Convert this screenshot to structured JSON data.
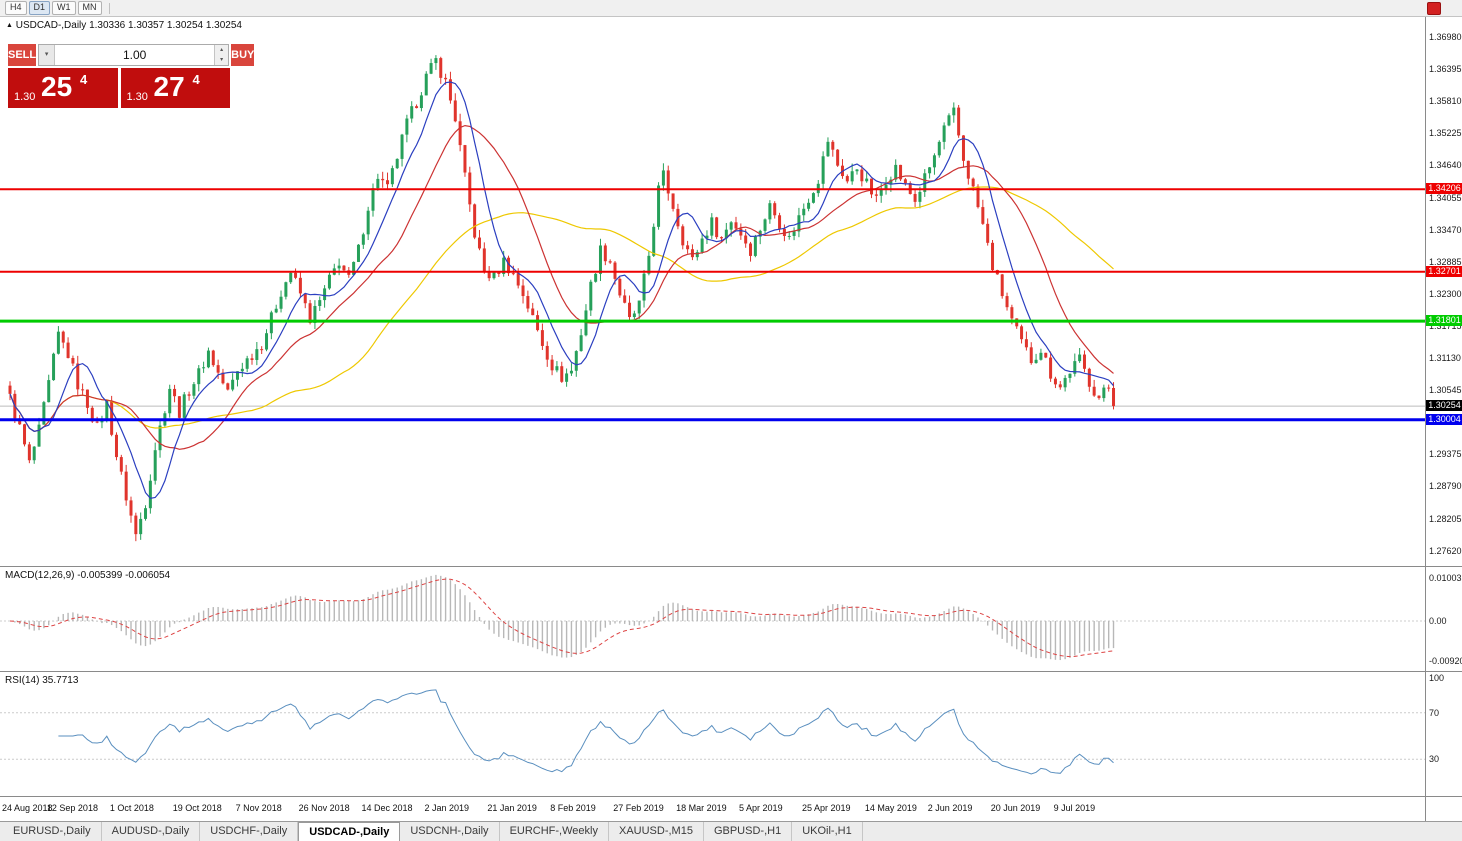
{
  "toolbar": {
    "timeframes": [
      "H4",
      "D1",
      "W1",
      "MN"
    ],
    "active": "D1"
  },
  "icons": {
    "symbol_marker": "▲",
    "dropdown_caret": "▾",
    "spin_up": "▴",
    "spin_down": "▾"
  },
  "chart": {
    "symbol": "USDCAD-,Daily",
    "ohlc": "1.30336 1.30357 1.30254 1.30254"
  },
  "one_click": {
    "sell_label": "SELL",
    "buy_label": "BUY",
    "volume": "1.00",
    "sell_price_small": "1.30",
    "sell_price_big": "25",
    "sell_price_sup": "4",
    "buy_price_small": "1.30",
    "buy_price_big": "27",
    "buy_price_sup": "4"
  },
  "indicators": {
    "macd_label": "MACD(12,26,9) -0.005399 -0.006054",
    "rsi_label": "RSI(14) 35.7713"
  },
  "tabs": {
    "items": [
      "EURUSD-,Daily",
      "AUDUSD-,Daily",
      "USDCHF-,Daily",
      "USDCAD-,Daily",
      "USDCNH-,Daily",
      "EURCHF-,Weekly",
      "XAUUSD-,M15",
      "GBPUSD-,H1",
      "UKOil-,H1"
    ],
    "active": "USDCAD-,Daily"
  },
  "colors": {
    "up": "#26a05a",
    "down": "#e0342c",
    "ma_fast": "#2b3fc0",
    "ma_mid": "#cc3333",
    "ma_slow": "#eec800",
    "macd_hist": "#b8b8b8",
    "macd_signal": "#dd4444",
    "rsi_line": "#5a8fbf",
    "level_red": "#ee0000",
    "level_green": "#00cc00",
    "level_blue": "#0000ee",
    "current_badge": "#000000"
  },
  "chart_data": {
    "type": "candlestick",
    "title": "USDCAD-,Daily",
    "bars_total": 229,
    "bars_per_label": 13,
    "last_close": 1.30254,
    "current_price_label": "1.30254",
    "x_labels": [
      "24 Aug 2018",
      "12 Sep 2018",
      "1 Oct 2018",
      "19 Oct 2018",
      "7 Nov 2018",
      "26 Nov 2018",
      "14 Dec 2018",
      "2 Jan 2019",
      "21 Jan 2019",
      "8 Feb 2019",
      "27 Feb 2019",
      "18 Mar 2019",
      "5 Apr 2019",
      "25 Apr 2019",
      "14 May 2019",
      "2 Jun 2019",
      "20 Jun 2019",
      "9 Jul 2019"
    ],
    "y_axis": {
      "max": 1.3698,
      "step": 0.00585,
      "labels": [
        "1.36980",
        "1.36395",
        "1.35810",
        "1.35225",
        "1.34640",
        "1.34055",
        "1.33470",
        "1.32885",
        "1.32300",
        "1.31715",
        "1.31130",
        "1.30545",
        "1.29960",
        "1.29375",
        "1.28790",
        "1.28205",
        "1.27620"
      ]
    },
    "horizontal_lines": [
      {
        "price": 1.34206,
        "label": "1.34206",
        "color": "#ee0000",
        "width": 2
      },
      {
        "price": 1.32701,
        "label": "1.32701",
        "color": "#ee0000",
        "width": 2
      },
      {
        "price": 1.31801,
        "label": "1.31801",
        "color": "#00cc00",
        "width": 3
      },
      {
        "price": 1.30004,
        "label": "1.30004",
        "color": "#0000ee",
        "width": 3
      }
    ],
    "moving_averages": [
      {
        "period": 8,
        "color": "#2b3fc0"
      },
      {
        "period": 20,
        "color": "#cc3333"
      },
      {
        "period": 50,
        "color": "#eec800"
      }
    ],
    "price_anchors": [
      [
        0,
        1.304
      ],
      [
        2,
        1.2985
      ],
      [
        4,
        1.292
      ],
      [
        6,
        1.298
      ],
      [
        8,
        1.3065
      ],
      [
        10,
        1.3155
      ],
      [
        12,
        1.312
      ],
      [
        14,
        1.3065
      ],
      [
        16,
        1.303
      ],
      [
        18,
        1.2985
      ],
      [
        20,
        1.303
      ],
      [
        22,
        1.2935
      ],
      [
        24,
        1.286
      ],
      [
        26,
        1.279
      ],
      [
        28,
        1.285
      ],
      [
        30,
        1.295
      ],
      [
        33,
        1.306
      ],
      [
        35,
        1.3015
      ],
      [
        37,
        1.3055
      ],
      [
        39,
        1.3085
      ],
      [
        41,
        1.3125
      ],
      [
        43,
        1.3085
      ],
      [
        45,
        1.305
      ],
      [
        47,
        1.309
      ],
      [
        50,
        1.312
      ],
      [
        52,
        1.314
      ],
      [
        54,
        1.3185
      ],
      [
        56,
        1.3235
      ],
      [
        58,
        1.327
      ],
      [
        60,
        1.323
      ],
      [
        62,
        1.3185
      ],
      [
        64,
        1.3215
      ],
      [
        66,
        1.3255
      ],
      [
        68,
        1.329
      ],
      [
        70,
        1.3255
      ],
      [
        72,
        1.331
      ],
      [
        74,
        1.339
      ],
      [
        76,
        1.3445
      ],
      [
        78,
        1.342
      ],
      [
        80,
        1.348
      ],
      [
        82,
        1.354
      ],
      [
        84,
        1.358
      ],
      [
        86,
        1.3625
      ],
      [
        88,
        1.3655
      ],
      [
        90,
        1.3615
      ],
      [
        92,
        1.355
      ],
      [
        94,
        1.344
      ],
      [
        96,
        1.334
      ],
      [
        98,
        1.327
      ],
      [
        100,
        1.326
      ],
      [
        102,
        1.329
      ],
      [
        104,
        1.3265
      ],
      [
        106,
        1.323
      ],
      [
        108,
        1.3185
      ],
      [
        110,
        1.314
      ],
      [
        112,
        1.31
      ],
      [
        114,
        1.3078
      ],
      [
        116,
        1.309
      ],
      [
        118,
        1.316
      ],
      [
        120,
        1.3245
      ],
      [
        122,
        1.331
      ],
      [
        124,
        1.329
      ],
      [
        126,
        1.323
      ],
      [
        128,
        1.318
      ],
      [
        130,
        1.321
      ],
      [
        132,
        1.33
      ],
      [
        134,
        1.342
      ],
      [
        135,
        1.3445
      ],
      [
        137,
        1.339
      ],
      [
        139,
        1.333
      ],
      [
        141,
        1.329
      ],
      [
        143,
        1.333
      ],
      [
        145,
        1.336
      ],
      [
        147,
        1.333
      ],
      [
        149,
        1.3365
      ],
      [
        151,
        1.334
      ],
      [
        153,
        1.331
      ],
      [
        155,
        1.335
      ],
      [
        157,
        1.339
      ],
      [
        159,
        1.336
      ],
      [
        161,
        1.333
      ],
      [
        163,
        1.337
      ],
      [
        165,
        1.3405
      ],
      [
        167,
        1.344
      ],
      [
        169,
        1.351
      ],
      [
        171,
        1.3465
      ],
      [
        173,
        1.3435
      ],
      [
        175,
        1.346
      ],
      [
        177,
        1.343
      ],
      [
        179,
        1.34
      ],
      [
        181,
        1.344
      ],
      [
        183,
        1.346
      ],
      [
        185,
        1.3425
      ],
      [
        187,
        1.34
      ],
      [
        189,
        1.344
      ],
      [
        191,
        1.348
      ],
      [
        193,
        1.353
      ],
      [
        195,
        1.356
      ],
      [
        197,
        1.3475
      ],
      [
        199,
        1.342
      ],
      [
        201,
        1.3355
      ],
      [
        203,
        1.328
      ],
      [
        205,
        1.323
      ],
      [
        207,
        1.318
      ],
      [
        209,
        1.314
      ],
      [
        211,
        1.311
      ],
      [
        213,
        1.313
      ],
      [
        215,
        1.3085
      ],
      [
        217,
        1.306
      ],
      [
        219,
        1.309
      ],
      [
        221,
        1.311
      ],
      [
        223,
        1.307
      ],
      [
        225,
        1.304
      ],
      [
        227,
        1.306
      ],
      [
        228,
        1.3025
      ]
    ],
    "indicators": [
      {
        "type": "macd",
        "params": [
          12,
          26,
          9
        ],
        "values": [
          -0.005399,
          -0.006054
        ],
        "axis_labels": [
          "0.010031",
          "0.00",
          "-0.009204"
        ]
      },
      {
        "type": "rsi",
        "params": [
          14
        ],
        "value": 35.7713,
        "axis_labels": [
          "100",
          "70",
          "30"
        ],
        "levels": [
          70,
          30
        ]
      }
    ]
  }
}
